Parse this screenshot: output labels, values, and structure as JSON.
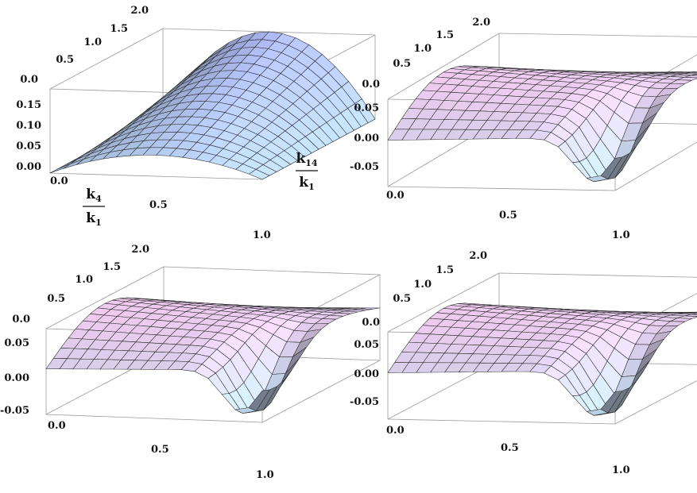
{
  "chart_data": [
    {
      "type": "surface",
      "panel": "top-left",
      "x_axis": {
        "label_num": "k",
        "label_num_sub": "4",
        "label_den": "k",
        "label_den_sub": "1",
        "range": [
          0,
          1
        ],
        "ticks": [
          "0.0",
          "0.5",
          "1.0"
        ]
      },
      "y_axis": {
        "label_num": "k",
        "label_num_sub": "14",
        "label_den": "k",
        "label_den_sub": "1",
        "range": [
          0,
          2
        ],
        "ticks": [
          "0.0",
          "0.5",
          "1.0",
          "1.5",
          "2.0"
        ]
      },
      "z_axis": {
        "range": [
          0,
          0.17
        ],
        "ticks": [
          "0.00",
          "0.05",
          "0.10",
          "0.15"
        ]
      },
      "shape": "dome",
      "amplitude": 0.17,
      "colors": [
        "#aab4ee",
        "#b7d3f0"
      ]
    },
    {
      "type": "surface",
      "panel": "top-right",
      "x_axis": {
        "range": [
          0,
          1
        ],
        "ticks": [
          "0.0",
          "0.5",
          "1.0"
        ]
      },
      "y_axis": {
        "range": [
          0,
          2
        ],
        "ticks": [
          "0.0",
          "0.5",
          "1.0",
          "1.5",
          "2.0"
        ]
      },
      "z_axis": {
        "range": [
          -0.08,
          0.06
        ],
        "ticks": [
          "-0.05",
          "0.00",
          "0.05"
        ]
      },
      "shape": "saddle",
      "amplitude": 0.075,
      "colors": [
        "#f0c4ea",
        "#bfe1f4"
      ]
    },
    {
      "type": "surface",
      "panel": "bottom-left",
      "x_axis": {
        "range": [
          0,
          1
        ],
        "ticks": [
          "0.0",
          "0.5",
          "1.0"
        ]
      },
      "y_axis": {
        "range": [
          0,
          2
        ],
        "ticks": [
          "0.0",
          "0.5",
          "1.0",
          "1.5",
          "2.0"
        ]
      },
      "z_axis": {
        "range": [
          -0.08,
          0.06
        ],
        "ticks": [
          "-0.05",
          "0.00",
          "0.05"
        ]
      },
      "shape": "saddle",
      "amplitude": 0.075,
      "colors": [
        "#f0c4ea",
        "#bfe1f4"
      ]
    },
    {
      "type": "surface",
      "panel": "bottom-right",
      "x_axis": {
        "range": [
          0,
          1
        ],
        "ticks": [
          "0.0",
          "0.5",
          "1.0"
        ]
      },
      "y_axis": {
        "range": [
          0,
          2
        ],
        "ticks": [
          "0.0",
          "0.5",
          "1.0",
          "1.5",
          "2.0"
        ]
      },
      "z_axis": {
        "range": [
          -0.08,
          0.06
        ],
        "ticks": [
          "-0.05",
          "0.00",
          "0.05"
        ]
      },
      "shape": "saddle",
      "amplitude": 0.075,
      "colors": [
        "#f0c4ea",
        "#bfe1f4"
      ]
    }
  ]
}
